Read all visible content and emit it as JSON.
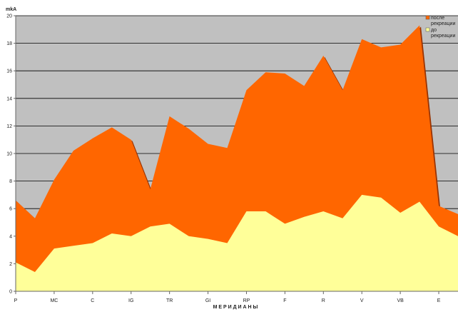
{
  "chart_data": {
    "type": "area",
    "title": "",
    "ylabel": "mkA",
    "xlabel": "М Е Р И Д И А Н Ы",
    "ylim": [
      0,
      20
    ],
    "yticks": [
      0,
      2,
      4,
      6,
      8,
      10,
      12,
      14,
      16,
      18,
      20
    ],
    "grid": true,
    "legend_position": "top-right",
    "x_tick_labels": [
      "P",
      "MC",
      "C",
      "IG",
      "TR",
      "GI",
      "RP",
      "F",
      "R",
      "V",
      "VB",
      "E"
    ],
    "x_tick_positions": [
      0,
      2,
      4,
      6,
      8,
      10,
      12,
      14,
      16,
      18,
      20,
      22
    ],
    "x": [
      0,
      1,
      2,
      3,
      4,
      5,
      6,
      7,
      8,
      9,
      10,
      11,
      12,
      13,
      14,
      15,
      16,
      17,
      18,
      19,
      20,
      21,
      22,
      23
    ],
    "series": [
      {
        "name": "после рекреации",
        "color": "#ff6600",
        "values": [
          6.6,
          5.3,
          8.1,
          10.2,
          11.1,
          11.9,
          11.0,
          7.4,
          12.7,
          11.8,
          10.7,
          10.4,
          14.6,
          15.9,
          15.8,
          14.9,
          17.1,
          14.6,
          18.3,
          17.7,
          17.9,
          19.3,
          6.2,
          5.6
        ]
      },
      {
        "name": "до рекреации",
        "color": "#ffff99",
        "values": [
          2.1,
          1.4,
          3.1,
          3.3,
          3.5,
          4.2,
          4.0,
          4.7,
          4.9,
          4.0,
          3.8,
          3.5,
          5.8,
          5.8,
          4.9,
          5.4,
          5.8,
          5.3,
          7.0,
          6.8,
          5.7,
          6.5,
          4.7,
          4.0
        ]
      }
    ],
    "colors": {
      "plot_background": "#c0c0c0",
      "gridline": "#000000",
      "top_edge": "#993300"
    }
  }
}
